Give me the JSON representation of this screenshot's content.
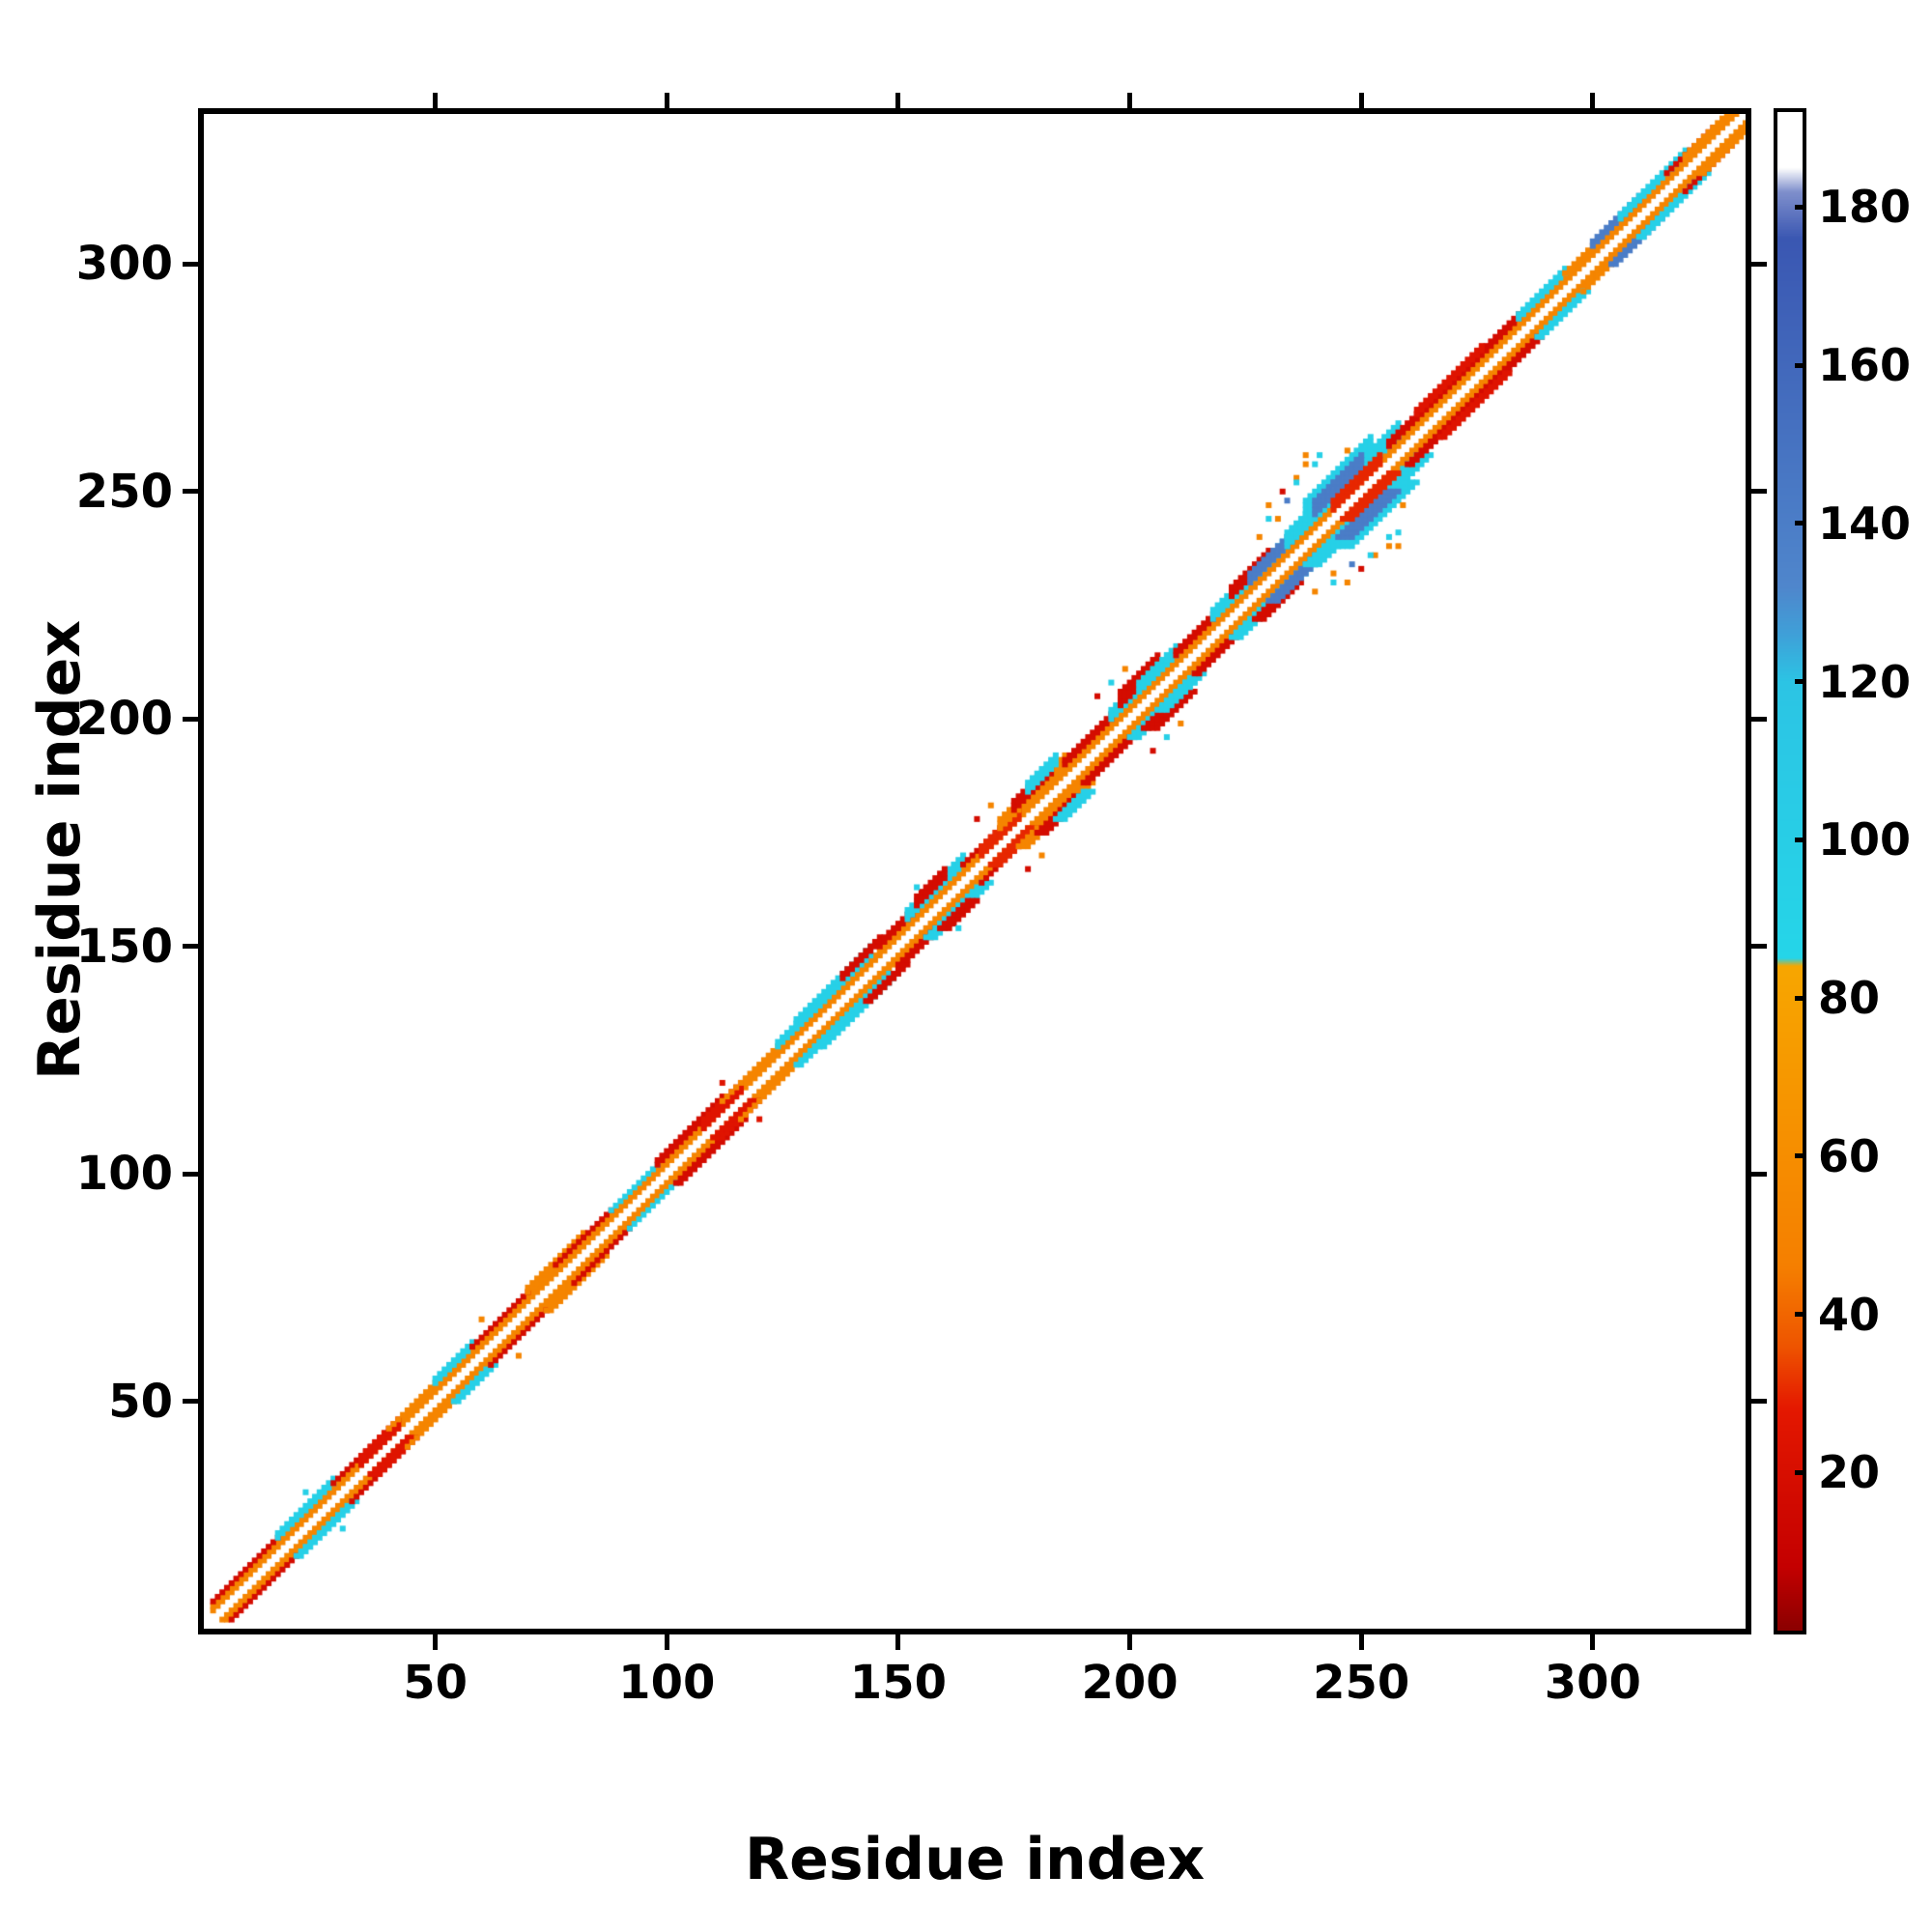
{
  "axes": {
    "xlabel": "Residue index",
    "ylabel": "Residue index",
    "x_ticks": [
      50,
      100,
      150,
      200,
      250,
      300
    ],
    "y_ticks": [
      50,
      100,
      150,
      200,
      250,
      300
    ]
  },
  "colorbar": {
    "ticks": [
      20,
      40,
      60,
      80,
      100,
      120,
      140,
      160,
      180
    ],
    "vmin": 0,
    "vmax": 192
  },
  "chart_data": {
    "type": "heatmap",
    "title": "",
    "xlabel": "Residue index",
    "ylabel": "Residue index",
    "xlim": [
      0,
      333
    ],
    "ylim": [
      0,
      333
    ],
    "grid": false,
    "legend_position": "right-colorbar",
    "frame_color": "#000000",
    "background_color": "#ffffff",
    "colorbar_vmin": 0,
    "colorbar_vmax": 192,
    "colorbar_ticks": [
      20,
      40,
      60,
      80,
      100,
      120,
      140,
      160,
      180
    ],
    "colormap_stops": [
      [
        0,
        "#8b0000"
      ],
      [
        8,
        "#c40000"
      ],
      [
        28,
        "#e41800"
      ],
      [
        36,
        "#ee5500"
      ],
      [
        46,
        "#f57f00"
      ],
      [
        84,
        "#f7a600"
      ],
      [
        85,
        "#25d5e8"
      ],
      [
        120,
        "#2cc4e4"
      ],
      [
        126,
        "#3fa0d8"
      ],
      [
        132,
        "#4f86cc"
      ],
      [
        176,
        "#3a57b2"
      ],
      [
        182,
        "#8090cc"
      ],
      [
        185,
        "#ffffff"
      ],
      [
        192,
        "#ffffff"
      ]
    ],
    "symmetric": true,
    "diagonal_segments_format": [
      "start_residue",
      "end_residue",
      "offset_min",
      "offset_max",
      "value"
    ],
    "diagonal_segments": [
      [
        2,
        331,
        2,
        3,
        52
      ],
      [
        2,
        16,
        4,
        4,
        18
      ],
      [
        16,
        28,
        4,
        5,
        95
      ],
      [
        28,
        40,
        4,
        4,
        18
      ],
      [
        34,
        42,
        2,
        4,
        25
      ],
      [
        40,
        56,
        4,
        4,
        52
      ],
      [
        50,
        58,
        4,
        5,
        95
      ],
      [
        58,
        70,
        4,
        4,
        18
      ],
      [
        70,
        82,
        4,
        5,
        52
      ],
      [
        76,
        88,
        4,
        4,
        18
      ],
      [
        88,
        98,
        4,
        4,
        95
      ],
      [
        98,
        112,
        4,
        5,
        18
      ],
      [
        108,
        116,
        2,
        4,
        25
      ],
      [
        112,
        124,
        4,
        4,
        52
      ],
      [
        124,
        134,
        4,
        5,
        95
      ],
      [
        128,
        144,
        4,
        6,
        95
      ],
      [
        138,
        146,
        5,
        6,
        18
      ],
      [
        146,
        154,
        4,
        5,
        18
      ],
      [
        152,
        164,
        4,
        6,
        95
      ],
      [
        154,
        160,
        5,
        7,
        18
      ],
      [
        164,
        172,
        4,
        4,
        18
      ],
      [
        168,
        176,
        2,
        4,
        30
      ],
      [
        172,
        186,
        4,
        6,
        52
      ],
      [
        175,
        183,
        5,
        7,
        18
      ],
      [
        178,
        184,
        6,
        8,
        95
      ],
      [
        186,
        196,
        4,
        5,
        18
      ],
      [
        196,
        210,
        4,
        6,
        95
      ],
      [
        198,
        206,
        5,
        8,
        18
      ],
      [
        202,
        208,
        4,
        6,
        95
      ],
      [
        210,
        218,
        4,
        5,
        18
      ],
      [
        218,
        234,
        4,
        6,
        95
      ],
      [
        222,
        230,
        5,
        7,
        18
      ],
      [
        226,
        236,
        4,
        6,
        140
      ],
      [
        234,
        258,
        4,
        7,
        95
      ],
      [
        238,
        252,
        6,
        10,
        95
      ],
      [
        240,
        250,
        5,
        8,
        140
      ],
      [
        244,
        254,
        2,
        4,
        30
      ],
      [
        256,
        284,
        4,
        5,
        18
      ],
      [
        262,
        276,
        5,
        6,
        25
      ],
      [
        284,
        294,
        4,
        5,
        95
      ],
      [
        294,
        306,
        4,
        4,
        52
      ],
      [
        300,
        310,
        4,
        5,
        140
      ],
      [
        306,
        320,
        4,
        5,
        95
      ],
      [
        316,
        326,
        4,
        4,
        18
      ],
      [
        320,
        331,
        3,
        4,
        52
      ]
    ],
    "off_diagonal_points_format": [
      "x",
      "y",
      "value"
    ],
    "off_diagonal_points": [
      [
        244,
        232,
        52
      ],
      [
        247,
        230,
        52
      ],
      [
        250,
        233,
        18
      ],
      [
        253,
        236,
        52
      ],
      [
        256,
        240,
        95
      ],
      [
        258,
        238,
        52
      ],
      [
        236,
        252,
        95
      ],
      [
        238,
        256,
        52
      ],
      [
        241,
        258,
        95
      ],
      [
        234,
        248,
        140
      ],
      [
        230,
        244,
        95
      ],
      [
        228,
        240,
        52
      ],
      [
        247,
        259,
        52
      ],
      [
        252,
        244,
        140
      ],
      [
        208,
        196,
        95
      ],
      [
        205,
        193,
        18
      ],
      [
        211,
        199,
        52
      ],
      [
        181,
        170,
        52
      ],
      [
        178,
        167,
        18
      ],
      [
        163,
        154,
        95
      ],
      [
        120,
        112,
        25
      ],
      [
        68,
        60,
        52
      ],
      [
        30,
        22,
        95
      ]
    ]
  }
}
